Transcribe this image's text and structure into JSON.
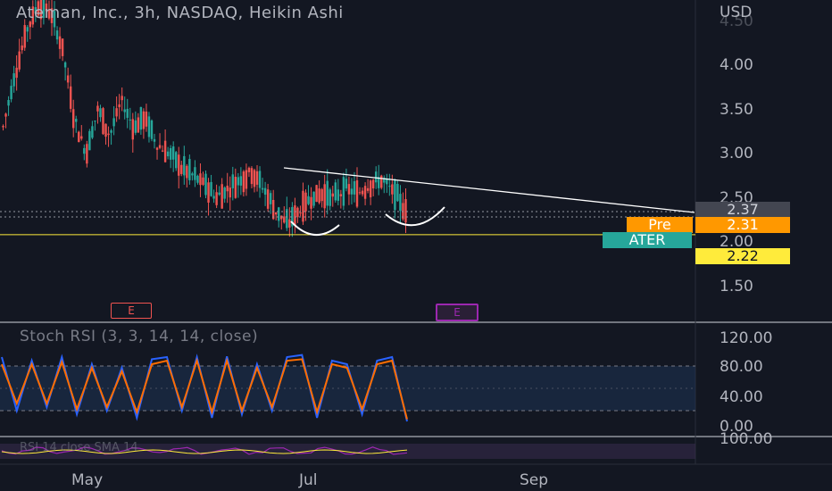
{
  "title": "Ateman, Inc., 3h, NASDAQ, Heikin Ashi",
  "currency": "USD",
  "price_axis": [
    "4.50",
    "4.00",
    "3.50",
    "3.00",
    "2.50",
    "2.00",
    "1.50"
  ],
  "stoch_axis": [
    "120.00",
    "80.00",
    "40.00",
    "0.00"
  ],
  "rsi_axis_label": "100.00",
  "time_axis": [
    "May",
    "Jul",
    "Sep"
  ],
  "indicator_title": "Stoch RSI (3, 3, 14, 14, close)",
  "rsi_title": "RSI 14 close SMA 14",
  "earnings_markers": [
    "E",
    "E"
  ],
  "badges": {
    "last_price": "2.37",
    "pre_label": "Pre",
    "pre_price": "2.31",
    "symbol": "ATER",
    "level": "2.22"
  },
  "colors": {
    "background": "#131722",
    "up": "#26a69a",
    "down": "#ef5350",
    "stoch_k": "#2962ff",
    "stoch_d": "#ff6d00",
    "level_line": "#ffeb3b",
    "pre_badge": "#ff9800",
    "earnings_red": "#ef5350",
    "earnings_purple": "#9c27b0"
  },
  "chart_data": {
    "type": "candlestick",
    "ylim": [
      1.2,
      4.7
    ],
    "close_sequence": [
      3.3,
      3.9,
      4.4,
      4.7,
      4.6,
      4.2,
      3.4,
      3.0,
      3.5,
      3.2,
      3.6,
      3.3,
      3.4,
      3.1,
      3.0,
      2.85,
      2.75,
      2.65,
      2.5,
      2.6,
      2.7,
      2.8,
      2.6,
      2.35,
      2.2,
      2.35,
      2.5,
      2.55,
      2.5,
      2.6,
      2.55,
      2.65,
      2.7,
      2.55,
      2.35
    ],
    "series": [
      {
        "name": "Stoch RSI K",
        "values": [
          95,
          20,
          90,
          25,
          95,
          15,
          85,
          20,
          80,
          10,
          92,
          95,
          20,
          95,
          10,
          96,
          15,
          85,
          20,
          95,
          98,
          10,
          90,
          85,
          15,
          90,
          95,
          5
        ]
      },
      {
        "name": "Stoch RSI D",
        "values": [
          85,
          30,
          85,
          30,
          88,
          22,
          80,
          25,
          75,
          18,
          85,
          90,
          25,
          90,
          18,
          90,
          20,
          80,
          25,
          90,
          92,
          18,
          85,
          80,
          22,
          85,
          90,
          8
        ]
      }
    ],
    "stoch_bands": [
      20,
      80
    ],
    "price_levels": {
      "last": 2.37,
      "pre": 2.31,
      "support": 2.22
    },
    "trendline": {
      "from": 2.8,
      "to": 2.37
    }
  }
}
